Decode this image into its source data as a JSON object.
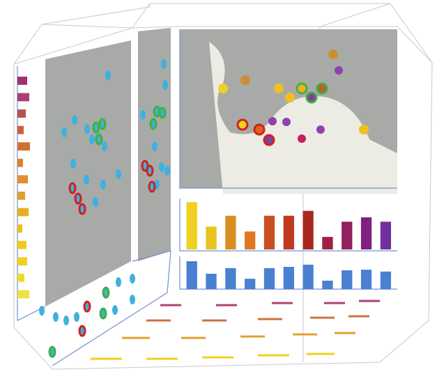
{
  "bar_chart": {
    "values": [
      87,
      42,
      62,
      33,
      62,
      62,
      71,
      23,
      51,
      59,
      51
    ],
    "colors": [
      "#f0d020",
      "#e8c420",
      "#d89020",
      "#e07820",
      "#c85020",
      "#c03a20",
      "#a82820",
      "#a02040",
      "#902060",
      "#802080",
      "#7030a0"
    ]
  },
  "blue_bars": {
    "values": [
      89,
      49,
      67,
      33,
      67,
      71,
      78,
      27,
      60,
      62,
      56
    ],
    "color": "#4a80d0"
  },
  "side_bars": {
    "values": [
      70,
      85,
      60,
      45,
      90,
      40,
      75,
      55,
      80,
      35,
      65,
      70,
      50,
      85
    ],
    "colors": [
      "#a03070",
      "#a84070",
      "#b85050",
      "#c86040",
      "#d07030",
      "#d88030",
      "#e09030",
      "#e0a030",
      "#e8b020",
      "#e8c020",
      "#f0c820",
      "#f0d020",
      "#f0d830",
      "#f0e040"
    ]
  }
}
